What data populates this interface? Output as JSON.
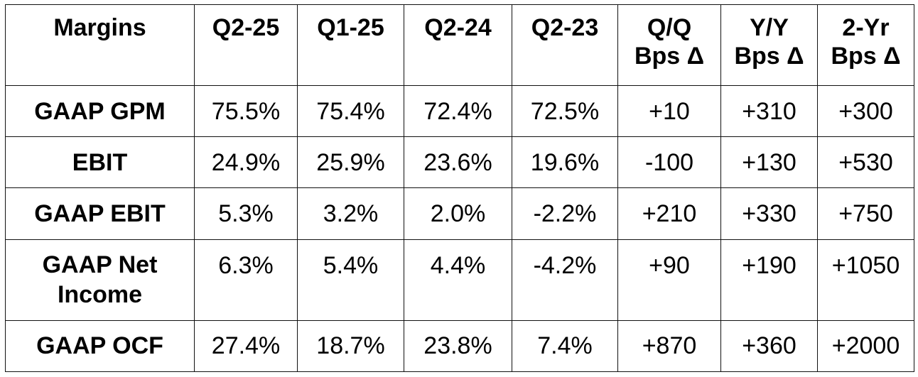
{
  "table": {
    "headers": [
      "Margins",
      "Q2-25",
      "Q1-25",
      "Q2-24",
      "Q2-23",
      "Q/Q Bps Δ",
      "Y/Y Bps Δ",
      "2-Yr Bps Δ"
    ],
    "header_lines": {
      "qq": [
        "Q/Q",
        "Bps Δ"
      ],
      "yy": [
        "Y/Y",
        "Bps Δ"
      ],
      "tw": [
        "2-Yr",
        "Bps Δ"
      ]
    },
    "rows": [
      {
        "label": "GAAP GPM",
        "values": [
          "75.5%",
          "75.4%",
          "72.4%",
          "72.5%",
          "+10",
          "+310",
          "+300"
        ]
      },
      {
        "label": "EBIT",
        "values": [
          "24.9%",
          "25.9%",
          "23.6%",
          "19.6%",
          "-100",
          "+130",
          "+530"
        ]
      },
      {
        "label": "GAAP EBIT",
        "values": [
          "5.3%",
          "3.2%",
          "2.0%",
          "-2.2%",
          "+210",
          "+330",
          "+750"
        ]
      },
      {
        "label_lines": [
          "GAAP Net",
          "Income"
        ],
        "values": [
          "6.3%",
          "5.4%",
          "4.4%",
          "-4.2%",
          "+90",
          "+190",
          "+1050"
        ]
      },
      {
        "label": "GAAP OCF",
        "values": [
          "27.4%",
          "18.7%",
          "23.8%",
          "7.4%",
          "+870",
          "+360",
          "+2000"
        ]
      }
    ]
  }
}
